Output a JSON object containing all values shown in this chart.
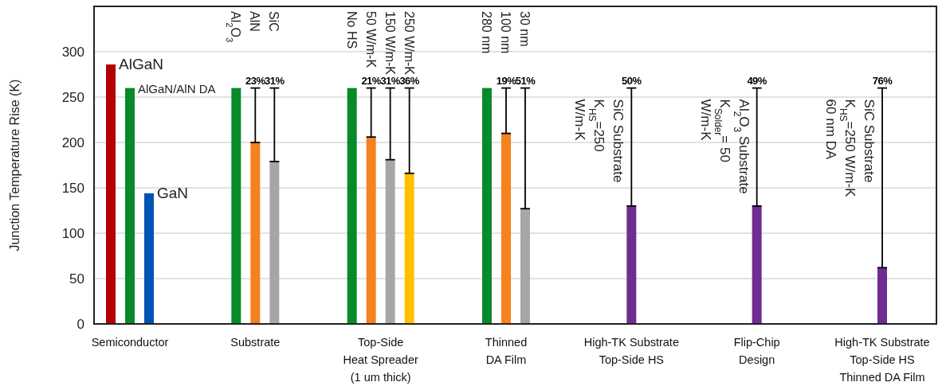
{
  "chart_data": {
    "type": "bar",
    "ylabel": "Junction Temperature Rise (K)",
    "categories": [
      "Semiconductor",
      "Substrate",
      "Top-Side\nHeat Spreader\n(1 um thick)",
      "Thinned\nDA Film",
      "High-TK Substrate\nTop-Side HS",
      "Flip-Chip\nDesign",
      "High-TK Substrate\nTop-Side HS\nThinned DA Film"
    ],
    "ylim": [
      0,
      350
    ],
    "yticks": [
      0,
      50,
      100,
      150,
      200,
      250,
      300
    ],
    "grid": "y",
    "series": [
      {
        "values": [
          286,
          260,
          260,
          260,
          130,
          130,
          62
        ],
        "colors": [
          "#b30000",
          "#078a2a",
          "#078a2a",
          "#078a2a",
          "#6f2c91",
          "#6f2c91",
          "#6f2c91"
        ],
        "errors": [
          null,
          null,
          null,
          null,
          [
            130,
            260
          ],
          [
            130,
            260
          ],
          [
            62,
            260
          ]
        ]
      },
      {
        "values": [
          260,
          200,
          206,
          210,
          null,
          null,
          null
        ],
        "colors": [
          "#078a2a",
          "#f5821f",
          "#f5821f",
          "#f5821f",
          null,
          null,
          null
        ],
        "errors": [
          null,
          [
            200,
            260
          ],
          [
            206,
            260
          ],
          [
            210,
            260
          ],
          null,
          null,
          null
        ]
      },
      {
        "values": [
          144,
          179,
          181,
          127,
          null,
          null,
          null
        ],
        "colors": [
          "#0053b5",
          "#a6a6a6",
          "#a6a6a6",
          "#a6a6a6",
          null,
          null,
          null
        ],
        "errors": [
          null,
          [
            179,
            260
          ],
          [
            181,
            260
          ],
          [
            127,
            260
          ],
          null,
          null,
          null
        ]
      },
      {
        "values": [
          null,
          null,
          166,
          null,
          null,
          null,
          null
        ],
        "colors": [
          null,
          null,
          "#ffc000",
          null,
          null,
          null,
          null
        ],
        "errors": [
          null,
          null,
          [
            166,
            260
          ],
          null,
          null,
          null,
          null
        ]
      }
    ],
    "annotations": [
      "AlGaN",
      "Al$_{2}$O$_{3}$",
      "No HS",
      "280 nm",
      "SiC Substrate\nK$_{HS}$=250\nW/m-K",
      "Al$_{2}$O$_{3}$ Substrate\nK$_{Solder}$= 50\nW/m-K",
      "SiC Substrate\nK$_{HS}$=250 W/m-K\n60 nm DA",
      "AlGaN/AlN DA",
      "AlN",
      "50 W/m-K",
      "100 nm",
      "GaN",
      "SiC",
      "150 W/m-K",
      "30  nm",
      "250 W/m-K",
      "50%",
      "49%",
      "76%",
      "23%",
      "21%",
      "19%",
      "31%",
      "31%",
      "51%",
      "36%"
    ]
  }
}
